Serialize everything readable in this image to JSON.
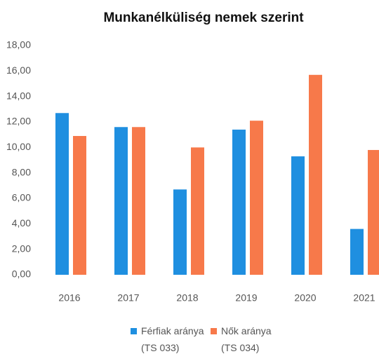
{
  "chart_data": {
    "type": "bar",
    "title": "Munkanélküliség nemek szerint",
    "categories": [
      "2016",
      "2017",
      "2018",
      "2019",
      "2020",
      "2021"
    ],
    "series": [
      {
        "name": "Férfiak aránya (TS 033)",
        "color": "#1f8fe0",
        "values": [
          12.7,
          11.6,
          6.7,
          11.4,
          9.3,
          3.6
        ]
      },
      {
        "name": "Nők aránya (TS 034)",
        "color": "#f7794a",
        "values": [
          10.9,
          11.6,
          10.0,
          12.1,
          15.7,
          9.8
        ]
      }
    ],
    "ylim": [
      0,
      18
    ],
    "yticks": [
      {
        "value": 0,
        "label": "0,00"
      },
      {
        "value": 2,
        "label": "2,00"
      },
      {
        "value": 4,
        "label": "4,00"
      },
      {
        "value": 6,
        "label": "6,00"
      },
      {
        "value": 8,
        "label": "8,00"
      },
      {
        "value": 10,
        "label": "10,00"
      },
      {
        "value": 12,
        "label": "12,00"
      },
      {
        "value": 14,
        "label": "14,00"
      },
      {
        "value": 16,
        "label": "16,00"
      },
      {
        "value": 18,
        "label": "18,00"
      }
    ],
    "grid": false
  }
}
